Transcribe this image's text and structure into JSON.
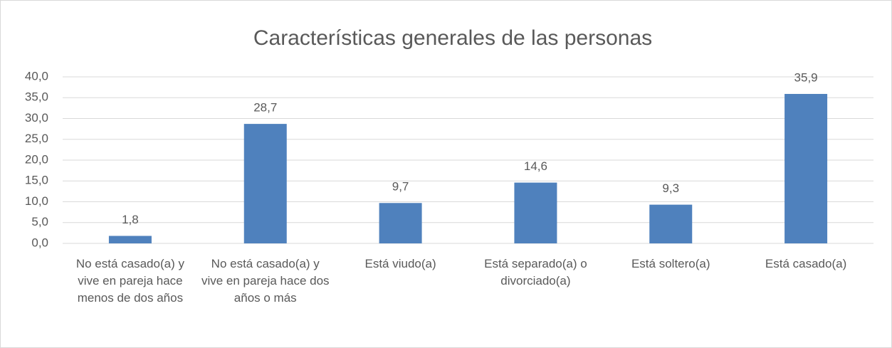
{
  "chart_data": {
    "type": "bar",
    "title": "Características generales de las personas",
    "categories": [
      "No está casado(a) y vive en pareja hace menos de dos años",
      "No está casado(a) y vive en pareja hace dos años o más",
      "Está viudo(a)",
      "Está separado(a) o divorciado(a)",
      "Está soltero(a)",
      "Está casado(a)"
    ],
    "values": [
      1.8,
      28.7,
      9.7,
      14.6,
      9.3,
      35.9
    ],
    "value_labels": [
      "1,8",
      "28,7",
      "9,7",
      "14,6",
      "9,3",
      "35,9"
    ],
    "color": "#4f81bd",
    "ylim": [
      0,
      40
    ],
    "yticks": [
      {
        "value": 0,
        "label": "0,0"
      },
      {
        "value": 5,
        "label": "5,0"
      },
      {
        "value": 10,
        "label": "10,0"
      },
      {
        "value": 15,
        "label": "15,0"
      },
      {
        "value": 20,
        "label": "20,0"
      },
      {
        "value": 25,
        "label": "25,0"
      },
      {
        "value": 30,
        "label": "30,0"
      },
      {
        "value": 35,
        "label": "35,0"
      },
      {
        "value": 40,
        "label": "40,0"
      }
    ],
    "grid": true
  }
}
